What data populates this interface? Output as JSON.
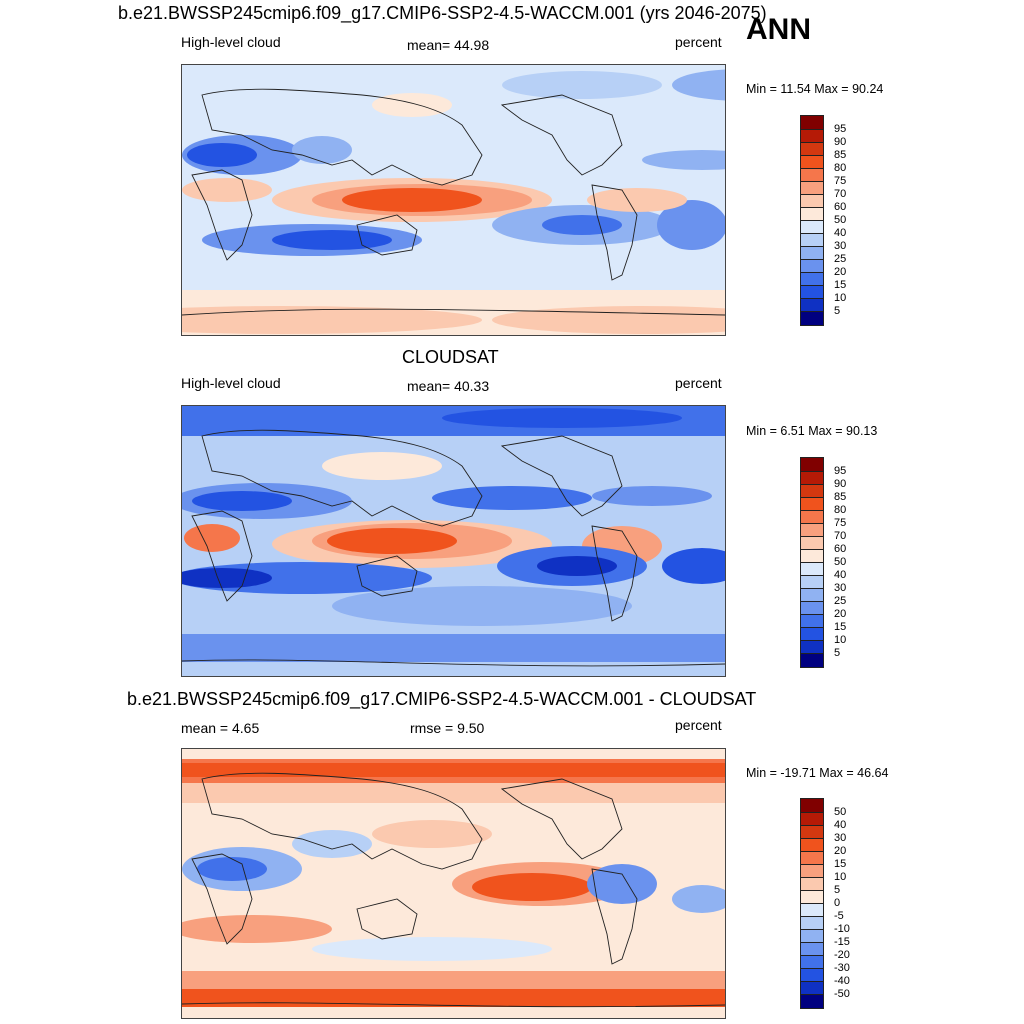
{
  "annotation": "ANN",
  "panels": [
    {
      "title": "b.e21.BWSSP245cmip6.f09_g17.CMIP6-SSP2-4.5-WACCM.001 (yrs 2046-2075)",
      "left_label": "High-level cloud",
      "center_label": "mean=  44.98",
      "right_label": "percent",
      "minmax": "Min =  11.54 Max =  90.24",
      "colorbar_labels": [
        "95",
        "90",
        "85",
        "80",
        "75",
        "70",
        "60",
        "50",
        "40",
        "30",
        "25",
        "20",
        "15",
        "10",
        "5"
      ]
    },
    {
      "title": "CLOUDSAT",
      "left_label": "High-level cloud",
      "center_label": "mean=  40.33",
      "right_label": "percent",
      "minmax": "Min =   6.51 Max =  90.13",
      "colorbar_labels": [
        "95",
        "90",
        "85",
        "80",
        "75",
        "70",
        "60",
        "50",
        "40",
        "30",
        "25",
        "20",
        "15",
        "10",
        "5"
      ]
    },
    {
      "title": "b.e21.BWSSP245cmip6.f09_g17.CMIP6-SSP2-4.5-WACCM.001 - CLOUDSAT",
      "left_label": "mean =   4.65",
      "center_label": "rmse =    9.50",
      "right_label": "percent",
      "minmax": "Min = -19.71 Max =  46.64",
      "colorbar_labels": [
        "50",
        "40",
        "30",
        "20",
        "15",
        "10",
        "5",
        "0",
        "-5",
        "-10",
        "-15",
        "-20",
        "-30",
        "-40",
        "-50"
      ]
    }
  ],
  "colors": {
    "scale": [
      "#800000",
      "#b51a06",
      "#d33810",
      "#f0531d",
      "#f5764b",
      "#f8a07e",
      "#fbc9af",
      "#fde9da",
      "#dbe9fb",
      "#b7d0f6",
      "#90b2f2",
      "#6a92ee",
      "#4171ea",
      "#2353e2",
      "#0f31c3",
      "#000080"
    ]
  }
}
